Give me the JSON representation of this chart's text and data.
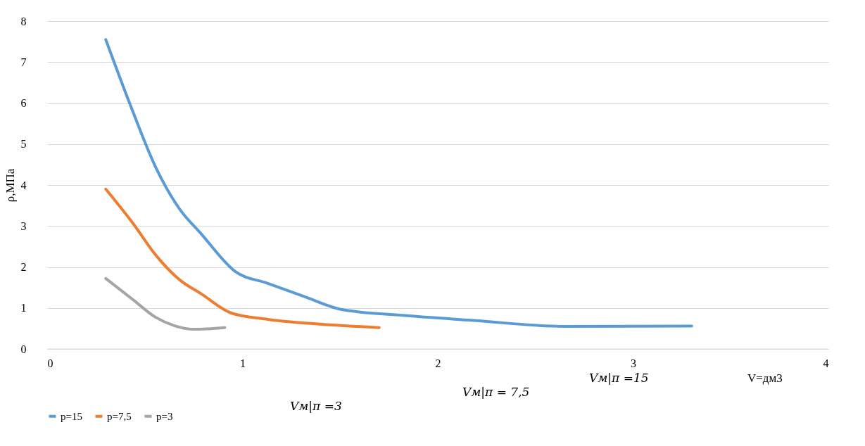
{
  "chart_data": {
    "type": "line",
    "xlabel": "V=дм3",
    "ylabel": "ρ,МПа",
    "xlim": [
      0,
      4
    ],
    "xticks": [
      0,
      1,
      2,
      3,
      4
    ],
    "ylim": [
      0,
      8
    ],
    "yticks": [
      0,
      1,
      2,
      3,
      4,
      5,
      6,
      7,
      8
    ],
    "grid": "y",
    "legend": "bottom",
    "marker": "none",
    "line_style": "solid",
    "series": [
      {
        "name": "p=15",
        "color": "#5b9bd5",
        "x": [
          0.3,
          0.43,
          0.556,
          0.68,
          0.79,
          0.93,
          0.96,
          1.13,
          1.31,
          1.51,
          1.82,
          2.17,
          2.65,
          3.3
        ],
        "values": [
          7.55,
          5.9,
          4.43,
          3.4,
          2.8,
          2.03,
          1.9,
          1.6,
          1.29,
          0.96,
          0.82,
          0.7,
          0.55,
          0.56
        ]
      },
      {
        "name": "p=7,5",
        "color": "#ed7d31",
        "x": [
          0.3,
          0.44,
          0.556,
          0.68,
          0.79,
          0.94,
          1.13,
          1.48,
          1.7
        ],
        "values": [
          3.9,
          3.06,
          2.29,
          1.68,
          1.34,
          0.88,
          0.72,
          0.58,
          0.52
        ]
      },
      {
        "name": "p=3",
        "color": "#a5a5a5",
        "x": [
          0.3,
          0.44,
          0.556,
          0.65,
          0.75,
          0.91
        ],
        "values": [
          1.72,
          1.2,
          0.77,
          0.57,
          0.48,
          0.52
        ]
      }
    ],
    "annotations": [
      "Vм|π =15",
      "Vм|π = 7,5",
      "Vм|π =3"
    ]
  }
}
